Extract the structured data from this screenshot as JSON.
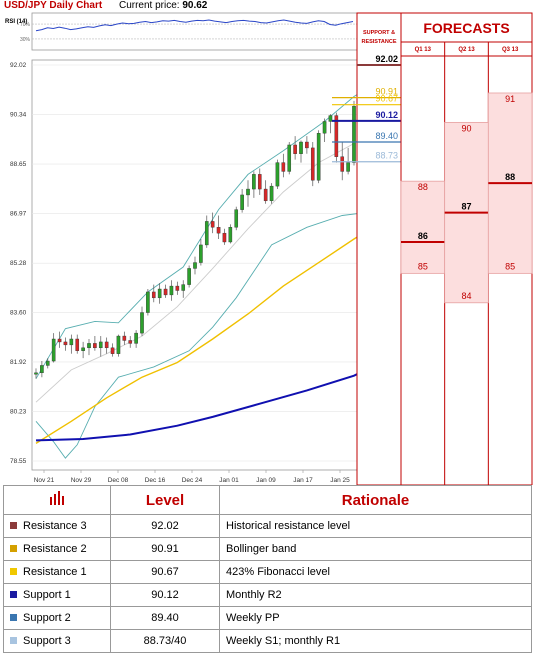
{
  "header": {
    "title": "USD/JPY Daily Chart",
    "price_label": "Current price:",
    "price_value": "90.62"
  },
  "chart_data": [
    {
      "type": "candlestick",
      "title": "USD/JPY Daily Chart",
      "y_ticks": [
        "92.02",
        "90.34",
        "88.65",
        "86.97",
        "85.28",
        "83.60",
        "81.92",
        "80.23",
        "78.55"
      ],
      "x_ticks": [
        "Nov 21",
        "Nov 29",
        "Dec 08",
        "Dec 16",
        "Dec 24",
        "Jan 01",
        "Jan 09",
        "Jan 17",
        "Jan 25"
      ],
      "ylim": [
        78.55,
        92.02
      ],
      "ohlc": [
        [
          81.5,
          81.7,
          81.35,
          81.55
        ],
        [
          81.55,
          81.95,
          81.4,
          81.8
        ],
        [
          81.8,
          82.05,
          81.7,
          81.95
        ],
        [
          81.95,
          82.9,
          81.9,
          82.7
        ],
        [
          82.7,
          82.95,
          82.4,
          82.6
        ],
        [
          82.6,
          82.75,
          82.3,
          82.5
        ],
        [
          82.5,
          82.85,
          82.2,
          82.7
        ],
        [
          82.7,
          82.85,
          82.2,
          82.3
        ],
        [
          82.3,
          82.6,
          82.05,
          82.4
        ],
        [
          82.4,
          82.7,
          82.15,
          82.55
        ],
        [
          82.55,
          82.8,
          82.3,
          82.4
        ],
        [
          82.4,
          82.8,
          82.1,
          82.6
        ],
        [
          82.6,
          82.75,
          82.2,
          82.4
        ],
        [
          82.4,
          82.55,
          82.1,
          82.2
        ],
        [
          82.2,
          82.85,
          82.1,
          82.8
        ],
        [
          82.8,
          82.95,
          82.5,
          82.65
        ],
        [
          82.65,
          82.8,
          82.4,
          82.55
        ],
        [
          82.55,
          83.0,
          82.4,
          82.9
        ],
        [
          82.9,
          83.8,
          82.8,
          83.6
        ],
        [
          83.6,
          84.4,
          83.5,
          84.3
        ],
        [
          84.3,
          84.55,
          83.95,
          84.1
        ],
        [
          84.1,
          84.6,
          83.9,
          84.4
        ],
        [
          84.4,
          84.55,
          84.1,
          84.2
        ],
        [
          84.2,
          84.7,
          84.0,
          84.5
        ],
        [
          84.5,
          84.65,
          84.2,
          84.35
        ],
        [
          84.35,
          84.7,
          84.1,
          84.55
        ],
        [
          84.55,
          85.2,
          84.45,
          85.1
        ],
        [
          85.1,
          85.5,
          84.9,
          85.3
        ],
        [
          85.3,
          86.1,
          85.2,
          85.9
        ],
        [
          85.9,
          86.9,
          85.8,
          86.7
        ],
        [
          86.7,
          87.0,
          86.3,
          86.5
        ],
        [
          86.5,
          86.9,
          86.1,
          86.3
        ],
        [
          86.3,
          86.45,
          85.9,
          86.0
        ],
        [
          86.0,
          86.6,
          85.95,
          86.5
        ],
        [
          86.5,
          87.2,
          86.4,
          87.1
        ],
        [
          87.1,
          87.8,
          87.0,
          87.6
        ],
        [
          87.6,
          88.1,
          87.2,
          87.8
        ],
        [
          87.8,
          88.4,
          87.5,
          88.3
        ],
        [
          88.3,
          88.5,
          87.6,
          87.8
        ],
        [
          87.8,
          88.1,
          87.3,
          87.4
        ],
        [
          87.4,
          88.0,
          87.3,
          87.9
        ],
        [
          87.9,
          88.8,
          87.8,
          88.7
        ],
        [
          88.7,
          89.0,
          88.2,
          88.4
        ],
        [
          88.4,
          89.4,
          88.3,
          89.3
        ],
        [
          89.3,
          89.6,
          88.8,
          89.0
        ],
        [
          89.0,
          89.45,
          88.7,
          89.4
        ],
        [
          89.4,
          89.6,
          89.0,
          89.2
        ],
        [
          89.2,
          89.4,
          87.9,
          88.1
        ],
        [
          88.1,
          89.8,
          88.0,
          89.7
        ],
        [
          89.7,
          90.2,
          89.4,
          90.1
        ],
        [
          90.1,
          90.35,
          89.7,
          90.3
        ],
        [
          90.3,
          90.4,
          88.7,
          88.9
        ],
        [
          88.9,
          89.4,
          88.1,
          88.4
        ],
        [
          88.4,
          89.2,
          88.3,
          88.7
        ],
        [
          88.7,
          90.8,
          88.6,
          90.62
        ]
      ],
      "series": [
        {
          "name": "Bollinger upper",
          "color": "#58aeb0",
          "points": [
            [
              0,
              81.35
            ],
            [
              5,
              83.05
            ],
            [
              10,
              83.3
            ],
            [
              14,
              83.25
            ],
            [
              19,
              84.3
            ],
            [
              25,
              85.15
            ],
            [
              31,
              87.1
            ],
            [
              36,
              88.3
            ],
            [
              42,
              89.1
            ],
            [
              49,
              90.1
            ],
            [
              54,
              90.95
            ],
            [
              56,
              91.2
            ]
          ]
        },
        {
          "name": "Bollinger middle",
          "color": "#cccccc",
          "points": [
            [
              0,
              80.55
            ],
            [
              6,
              81.65
            ],
            [
              12,
              82.2
            ],
            [
              18,
              82.8
            ],
            [
              24,
              83.8
            ],
            [
              30,
              85.1
            ],
            [
              36,
              86.45
            ],
            [
              42,
              87.7
            ],
            [
              48,
              88.7
            ],
            [
              54,
              89.35
            ],
            [
              56,
              89.7
            ]
          ]
        },
        {
          "name": "Bollinger lower",
          "color": "#58aeb0",
          "points": [
            [
              0,
              79.9
            ],
            [
              3,
              79.2
            ],
            [
              5,
              78.65
            ],
            [
              7,
              79.1
            ],
            [
              10,
              80.4
            ],
            [
              14,
              81.4
            ],
            [
              20,
              81.75
            ],
            [
              26,
              82.3
            ],
            [
              30,
              83.1
            ],
            [
              34,
              84.1
            ],
            [
              40,
              85.9
            ],
            [
              46,
              86.5
            ],
            [
              52,
              86.9
            ],
            [
              56,
              87.0
            ]
          ]
        },
        {
          "name": "Moving average",
          "color": "#f0c000",
          "points": [
            [
              0,
              79.15
            ],
            [
              6,
              79.9
            ],
            [
              12,
              80.7
            ],
            [
              18,
              81.4
            ],
            [
              24,
              81.9
            ],
            [
              30,
              82.7
            ],
            [
              36,
              83.55
            ],
            [
              42,
              84.5
            ],
            [
              48,
              85.3
            ],
            [
              54,
              86.1
            ],
            [
              56,
              86.35
            ]
          ]
        },
        {
          "name": "Long moving average",
          "color": "#1010b0",
          "points": [
            [
              0,
              79.25
            ],
            [
              8,
              79.3
            ],
            [
              16,
              79.45
            ],
            [
              24,
              79.75
            ],
            [
              30,
              80.05
            ],
            [
              38,
              80.5
            ],
            [
              46,
              80.95
            ],
            [
              54,
              81.45
            ],
            [
              56,
              81.65
            ]
          ]
        }
      ]
    },
    {
      "type": "line",
      "title": "RSI (14)",
      "y_ticks": [
        "70%",
        "30%"
      ],
      "ylim": [
        0,
        100
      ],
      "values": [
        52,
        55,
        60,
        58,
        62,
        59,
        55,
        57,
        60,
        63,
        61,
        65,
        68,
        66,
        70,
        73,
        71,
        72,
        75,
        77,
        74,
        76,
        79,
        78,
        80,
        77,
        75,
        78,
        80,
        79,
        81,
        78,
        76,
        74,
        77,
        79,
        80,
        78,
        77,
        74,
        73,
        76,
        79,
        81,
        78,
        75,
        73,
        72,
        76,
        79,
        77,
        69,
        67,
        71,
        74,
        77
      ]
    }
  ],
  "levels_panel": {
    "support_resistance_label": "SUPPORT & RESISTANCE",
    "forecasts_title": "FORECASTS",
    "columns": [
      "Q1 13",
      "Q2 13",
      "Q3 13"
    ],
    "lines": [
      {
        "value": 92.02,
        "label": "92.02",
        "color": "#8b3a3a"
      },
      {
        "value": 90.91,
        "label": "90.91",
        "color": "#e0b000"
      },
      {
        "value": 90.67,
        "label": "90.67",
        "color": "#f0c400"
      },
      {
        "value": 90.12,
        "label": "90.12",
        "color": "#1a1aa0"
      },
      {
        "value": 89.4,
        "label": "89.40",
        "color": "#3a76b0"
      },
      {
        "value": 88.73,
        "label": "88.73",
        "color": "#9cbad8"
      }
    ],
    "forecasts": [
      {
        "column": "Q1 13",
        "high": 88,
        "mid": 86,
        "low": 85
      },
      {
        "column": "Q2 13",
        "high": 90,
        "mid": 87,
        "low": 84
      },
      {
        "column": "Q3 13",
        "high": 91,
        "mid": 88,
        "low": 85
      }
    ]
  },
  "table": {
    "header": {
      "level": "Level",
      "rationale": "Rationale",
      "icon": "bar-chart-icon"
    },
    "rows": [
      {
        "name": "Resistance 3",
        "level": "92.02",
        "rationale": "Historical resistance level",
        "color": "#8b3a3a"
      },
      {
        "name": "Resistance 2",
        "level": "90.91",
        "rationale": "Bollinger band",
        "color": "#d4a000"
      },
      {
        "name": "Resistance 1",
        "level": "90.67",
        "rationale": "423% Fibonacci level",
        "color": "#f0c800"
      },
      {
        "name": "Support 1",
        "level": "90.12",
        "rationale": "Monthly R2",
        "color": "#1a1aa0"
      },
      {
        "name": "Support 2",
        "level": "89.40",
        "rationale": "Weekly PP",
        "color": "#3a76b0"
      },
      {
        "name": "Support 3",
        "level": "88.73/40",
        "rationale": "Weekly S1; monthly R1",
        "color": "#a8c4e0"
      }
    ]
  }
}
